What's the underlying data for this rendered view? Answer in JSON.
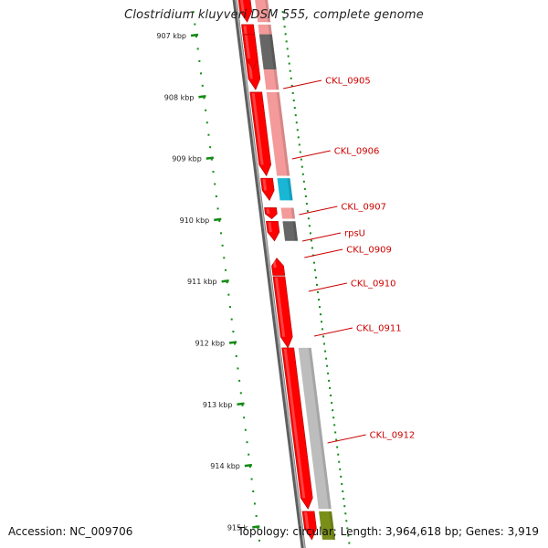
{
  "title": "Clostridium kluyveri DSM 555, complete genome",
  "accession": "Accession: NC_009706",
  "summary": "Topology: circular; Length: 3,964,618 bp; Genes: 3,919",
  "ruler": {
    "ticks": [
      {
        "label": "907 kbp",
        "kbp": 907
      },
      {
        "label": "908 kbp",
        "kbp": 908
      },
      {
        "label": "909 kbp",
        "kbp": 909
      },
      {
        "label": "910 kbp",
        "kbp": 910
      },
      {
        "label": "911 kbp",
        "kbp": 911
      },
      {
        "label": "912 kbp",
        "kbp": 912
      },
      {
        "label": "913 kbp",
        "kbp": 913
      },
      {
        "label": "914 kbp",
        "kbp": 914
      },
      {
        "label": "915 k",
        "kbp": 915
      }
    ]
  },
  "genes": [
    {
      "label": "",
      "start": 906.4,
      "end": 906.78,
      "strand": "-",
      "cds": "pink"
    },
    {
      "label": "CKL_0905",
      "start": 906.82,
      "end": 907.88,
      "strand": "-",
      "cds": "pink"
    },
    {
      "label": "",
      "start": 906.98,
      "end": 907.55,
      "strand": "-",
      "cds": "dark"
    },
    {
      "label": "CKL_0906",
      "start": 907.92,
      "end": 909.28,
      "strand": "-",
      "cds": "pink"
    },
    {
      "label": "CKL_0907",
      "start": 909.32,
      "end": 909.68,
      "strand": "-",
      "cds": "cyan"
    },
    {
      "label": "rpsU",
      "start": 909.8,
      "end": 909.98,
      "strand": "-",
      "cds": "pink"
    },
    {
      "label": "CKL_0909",
      "start": 910.02,
      "end": 910.34,
      "strand": "-",
      "cds": "dark"
    },
    {
      "label": "CKL_0910",
      "start": 910.62,
      "end": 910.9,
      "strand": "+",
      "cds": "none"
    },
    {
      "label": "CKL_0911",
      "start": 910.92,
      "end": 912.08,
      "strand": "-",
      "cds": "none"
    },
    {
      "label": "CKL_0912",
      "start": 912.08,
      "end": 914.7,
      "strand": "-",
      "cds": "light"
    },
    {
      "label": "",
      "start": 914.74,
      "end": 915.2,
      "strand": "-",
      "cds": "olive"
    }
  ],
  "colors": {
    "gene": "#ff0000",
    "gene_label": "#cc0000",
    "ruler": "#138a13",
    "backbone": "#888888",
    "cds_pink": "#f49a9a",
    "cds_dark": "#666666",
    "cds_cyan": "#1ab6d6",
    "cds_light": "#bdbdbd",
    "cds_olive": "#7a8f1a"
  }
}
